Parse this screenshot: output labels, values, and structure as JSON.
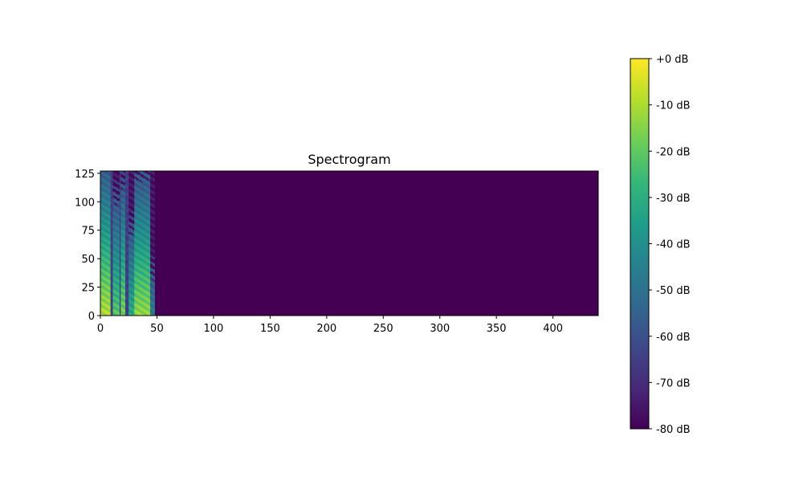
{
  "chart_data": {
    "type": "heatmap",
    "title": "Spectrogram",
    "xlabel": "",
    "ylabel": "",
    "xlim": [
      0,
      440
    ],
    "ylim": [
      0,
      127
    ],
    "x_ticks": [
      0,
      50,
      100,
      150,
      200,
      250,
      300,
      350,
      400
    ],
    "y_ticks": [
      0,
      25,
      50,
      75,
      100,
      125
    ],
    "colormap": "viridis",
    "colorbar": {
      "ticks": [
        0,
        -10,
        -20,
        -30,
        -40,
        -50,
        -60,
        -70,
        -80
      ],
      "labels": [
        "+0 dB",
        "-10 dB",
        "-20 dB",
        "-30 dB",
        "-40 dB",
        "-50 dB",
        "-60 dB",
        "-70 dB",
        "-80 dB"
      ],
      "vmin": -80,
      "vmax": 0
    },
    "signal_frames": [
      0,
      48
    ],
    "background_db": -80,
    "bursts": [
      {
        "x": [
          0,
          9
        ],
        "db": -8
      },
      {
        "x": [
          11,
          17
        ],
        "db": -20
      },
      {
        "x": [
          18,
          22
        ],
        "db": -15
      },
      {
        "x": [
          25,
          30
        ],
        "db": -30
      },
      {
        "x": [
          30,
          44
        ],
        "db": -12
      },
      {
        "x": [
          44,
          48
        ],
        "db": -45
      }
    ],
    "colors": {
      "background": "#440154",
      "viridis": [
        "#440154",
        "#482878",
        "#3e4989",
        "#31688e",
        "#26828e",
        "#1f9e89",
        "#35b779",
        "#6ece58",
        "#b5de2b",
        "#fde725"
      ]
    }
  }
}
